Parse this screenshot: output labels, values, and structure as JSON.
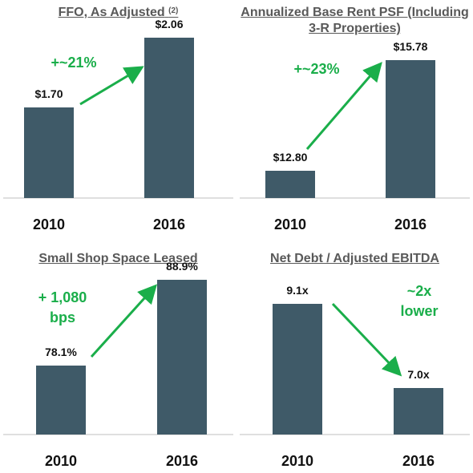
{
  "chart_data": [
    {
      "type": "bar",
      "title": "FFO, As Adjusted",
      "title_superscript": "(2)",
      "categories": [
        "2010",
        "2016"
      ],
      "values": [
        1.7,
        2.06
      ],
      "value_labels": [
        "$1.70",
        "$2.06"
      ],
      "annotation": [
        "+~21%"
      ],
      "annotation_color": "#1aae4a",
      "arrow_direction": "up",
      "bar_color": "#3f5a68"
    },
    {
      "type": "bar",
      "title": "Annualized Base Rent PSF (Including 3-R Properties)",
      "title_lines": [
        "Annualized Base Rent PSF (Including",
        "3-R Properties)"
      ],
      "categories": [
        "2010",
        "2016"
      ],
      "values": [
        12.8,
        15.78
      ],
      "value_labels": [
        "$12.80",
        "$15.78"
      ],
      "annotation": [
        "+~23%"
      ],
      "annotation_color": "#1aae4a",
      "arrow_direction": "up",
      "bar_color": "#3f5a68"
    },
    {
      "type": "bar",
      "title": "Small Shop Space Leased",
      "categories": [
        "2010",
        "2016"
      ],
      "values": [
        78.1,
        88.9
      ],
      "value_labels": [
        "78.1%",
        "88.9%"
      ],
      "annotation": [
        "+ 1,080",
        "bps"
      ],
      "annotation_color": "#1aae4a",
      "arrow_direction": "up",
      "bar_color": "#3f5a68"
    },
    {
      "type": "bar",
      "title": "Net Debt / Adjusted EBITDA",
      "categories": [
        "2010",
        "2016"
      ],
      "values": [
        9.1,
        7.0
      ],
      "value_labels": [
        "9.1x",
        "7.0x"
      ],
      "annotation": [
        "~2x",
        "lower"
      ],
      "annotation_color": "#1aae4a",
      "arrow_direction": "down",
      "bar_color": "#3f5a68"
    }
  ]
}
